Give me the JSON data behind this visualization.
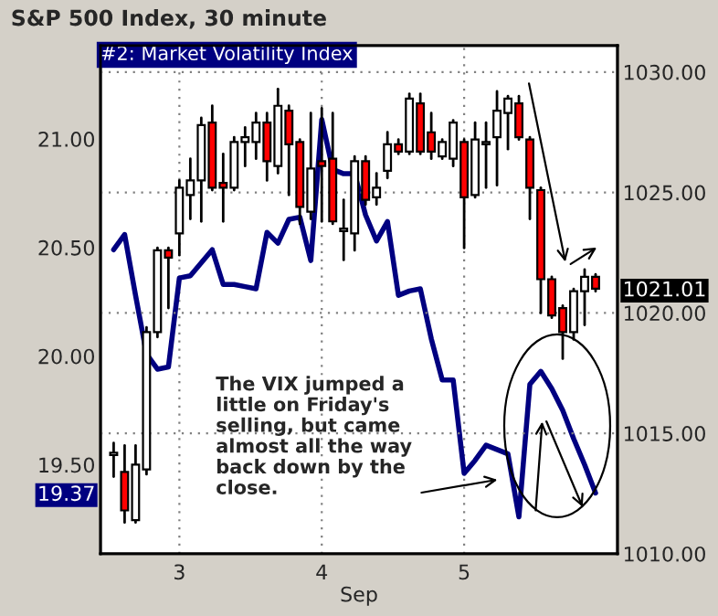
{
  "chart_data": {
    "type": "candlestick",
    "title": "S&P 500 Index, 30 minute",
    "subtitle": "#2: Market Volatility Index",
    "xlabel": "Sep",
    "categories": [
      null,
      null,
      null,
      null,
      null,
      null,
      "3",
      null,
      null,
      null,
      null,
      null,
      null,
      null,
      null,
      null,
      null,
      null,
      null,
      "4",
      null,
      null,
      null,
      null,
      null,
      null,
      null,
      null,
      null,
      null,
      null,
      null,
      "5",
      null,
      null,
      null,
      null,
      null,
      null,
      null,
      null,
      null,
      null,
      null,
      null
    ],
    "ohlc": [
      [
        1014.1,
        1014.6,
        1013.2,
        1014.2
      ],
      [
        1013.4,
        1014.5,
        1011.3,
        1011.8
      ],
      [
        1011.4,
        1014.5,
        1011.3,
        1013.7
      ],
      [
        1013.5,
        1019.4,
        1013.3,
        1019.2
      ],
      [
        1019.2,
        1022.7,
        1019.0,
        1022.6
      ],
      [
        1022.6,
        1022.7,
        1020.2,
        1022.3
      ],
      [
        1023.3,
        1025.5,
        1022.4,
        1025.2
      ],
      [
        1024.9,
        1026.4,
        1023.9,
        1025.5
      ],
      [
        1025.5,
        1028.1,
        1023.8,
        1027.8
      ],
      [
        1027.9,
        1028.6,
        1025.1,
        1025.2
      ],
      [
        1025.4,
        1026.6,
        1023.8,
        1025.2
      ],
      [
        1025.2,
        1027.3,
        1025.1,
        1027.1
      ],
      [
        1027.1,
        1027.7,
        1026.1,
        1027.3
      ],
      [
        1027.1,
        1028.3,
        1026.4,
        1027.9
      ],
      [
        1027.9,
        1028.3,
        1025.5,
        1026.3
      ],
      [
        1026.1,
        1029.3,
        1025.8,
        1028.6
      ],
      [
        1028.4,
        1028.6,
        1024.9,
        1027.0
      ],
      [
        1027.1,
        1027.2,
        1023.7,
        1024.4
      ],
      [
        1024.2,
        1028.3,
        1023.9,
        1026.0
      ],
      [
        1026.3,
        1028.5,
        1023.8,
        1026.1
      ],
      [
        1026.4,
        1028.3,
        1023.7,
        1023.8
      ],
      [
        1023.4,
        1024.7,
        1022.2,
        1023.5
      ],
      [
        1023.3,
        1026.5,
        1022.6,
        1026.3
      ],
      [
        1026.3,
        1026.5,
        1024.5,
        1024.7
      ],
      [
        1024.8,
        1025.8,
        1024.5,
        1025.2
      ],
      [
        1025.9,
        1027.5,
        1025.6,
        1027.0
      ],
      [
        1027.0,
        1027.2,
        1026.6,
        1026.7
      ],
      [
        1026.7,
        1029.1,
        1026.6,
        1028.9
      ],
      [
        1028.7,
        1029.1,
        1026.6,
        1026.7
      ],
      [
        1027.5,
        1028.3,
        1026.4,
        1026.7
      ],
      [
        1026.5,
        1027.2,
        1026.4,
        1027.1
      ],
      [
        1026.4,
        1028.0,
        1026.1,
        1027.9
      ],
      [
        1027.1,
        1027.2,
        1022.7,
        1024.8
      ],
      [
        1024.9,
        1027.9,
        1024.8,
        1027.2
      ],
      [
        1027.0,
        1027.9,
        1025.2,
        1027.1
      ],
      [
        1027.3,
        1029.2,
        1025.3,
        1028.4
      ],
      [
        1028.3,
        1029.0,
        1026.8,
        1028.9
      ],
      [
        1028.7,
        1029.0,
        1027.2,
        1027.3
      ],
      [
        1027.2,
        1027.3,
        1023.9,
        1025.2
      ],
      [
        1025.1,
        1025.2,
        1020.0,
        1021.4
      ],
      [
        1021.4,
        1021.5,
        1019.8,
        1019.9
      ],
      [
        1020.2,
        1020.3,
        1018.1,
        1019.2
      ],
      [
        1019.2,
        1021.0,
        1018.9,
        1020.9
      ],
      [
        1020.9,
        1021.8,
        1019.5,
        1021.5
      ],
      [
        1021.5,
        1021.6,
        1020.9,
        1021.01
      ]
    ],
    "colors": [
      "#ffffff",
      "#ff0000",
      "#ffffff",
      "#ffffff",
      "#ffffff",
      "#ff0000",
      "#ffffff",
      "#ffffff",
      "#ffffff",
      "#ff0000",
      "#ff0000",
      "#ffffff",
      "#ffffff",
      "#ffffff",
      "#ff0000",
      "#ffffff",
      "#ff0000",
      "#ff0000",
      "#ffffff",
      "#ff0000",
      "#ff0000",
      "#ffffff",
      "#ffffff",
      "#ff0000",
      "#ffffff",
      "#ffffff",
      "#ff0000",
      "#ffffff",
      "#ff0000",
      "#ff0000",
      "#ffffff",
      "#ffffff",
      "#ff0000",
      "#ffffff",
      "#ffffff",
      "#ffffff",
      "#ffffff",
      "#ff0000",
      "#ff0000",
      "#ff0000",
      "#ff0000",
      "#ff0000",
      "#ffffff",
      "#ffffff",
      "#ff0000"
    ],
    "series": [
      {
        "type": "line",
        "axis": "y2",
        "color": "#000080",
        "values": [
          20.49,
          20.56,
          20.28,
          20.01,
          19.94,
          19.95,
          20.36,
          20.37,
          20.43,
          20.49,
          20.33,
          20.33,
          20.32,
          20.31,
          20.57,
          20.52,
          20.63,
          20.64,
          20.44,
          21.09,
          20.86,
          20.84,
          20.84,
          20.65,
          20.53,
          20.62,
          20.28,
          20.3,
          20.31,
          20.08,
          19.89,
          19.89,
          19.46,
          19.52,
          19.59,
          19.57,
          19.55,
          19.26,
          19.87,
          19.93,
          19.85,
          19.75,
          19.62,
          19.5,
          19.37
        ]
      }
    ],
    "ylim": [
      1010,
      1031.1
    ],
    "yticks": [
      {
        "value": 1010,
        "label": "1010.00"
      },
      {
        "value": 1015,
        "label": "1015.00"
      },
      {
        "value": 1020,
        "label": "1020.00"
      },
      {
        "value": 1025,
        "label": "1025.00"
      },
      {
        "value": 1030,
        "label": "1030.00"
      },
      {
        "value": 1021.01,
        "label": "1021.01"
      }
    ],
    "y2lim": [
      19.09,
      21.43
    ],
    "y2ticks": [
      {
        "value": 19.5,
        "label": "19.50"
      },
      {
        "value": 20,
        "label": "20.00"
      },
      {
        "value": 20.5,
        "label": "20.50"
      },
      {
        "value": 21,
        "label": "21.00"
      },
      {
        "value": 19.37,
        "label": "19.37"
      }
    ],
    "grid": true,
    "annotations": [
      "The VIX jumped a\nlittle on Friday's\nselling, but came\nalmost all the way\nback down by the\nclose."
    ]
  }
}
